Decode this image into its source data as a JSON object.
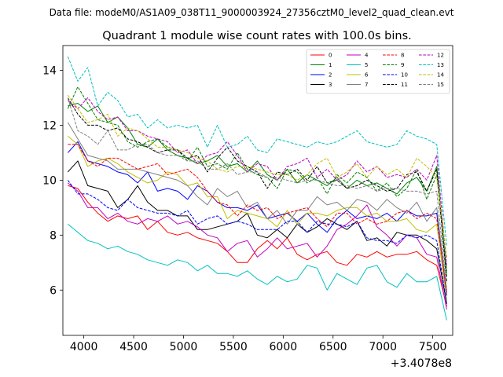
{
  "suptitle": "Data file: modeM0/AS1A09_038T11_9000003924_27356cztM0_level2_quad_clean.evt",
  "chart_data": {
    "type": "line",
    "title": "Quadrant 1 module wise count rates with 100.0s bins.",
    "xlabel": "",
    "ylabel": "",
    "x_offset_label": "+3.4078e8",
    "xlim": [
      3790,
      7700
    ],
    "ylim": [
      4.35,
      14.9
    ],
    "x_ticks": [
      4000,
      4500,
      5000,
      5500,
      6000,
      6500,
      7000,
      7500
    ],
    "x_tick_labels": [
      "4000",
      "4500",
      "5000",
      "5500",
      "6000",
      "6500",
      "7000",
      "7500"
    ],
    "y_ticks": [
      6,
      8,
      10,
      12,
      14
    ],
    "y_tick_labels": [
      "6",
      "8",
      "10",
      "12",
      "14"
    ],
    "legend_position": "top-right",
    "legend_columns": 4,
    "x": [
      3840,
      3940,
      4040,
      4140,
      4240,
      4340,
      4440,
      4540,
      4640,
      4740,
      4840,
      4940,
      5040,
      5140,
      5240,
      5340,
      5440,
      5540,
      5640,
      5740,
      5840,
      5940,
      6040,
      6140,
      6240,
      6340,
      6440,
      6540,
      6640,
      6740,
      6840,
      6940,
      7040,
      7140,
      7240,
      7340,
      7440,
      7540,
      7640
    ],
    "series": [
      {
        "name": "0",
        "color": "#ff0000",
        "dash": "solid",
        "values": [
          9.8,
          9.7,
          9.2,
          8.8,
          8.5,
          8.7,
          8.6,
          8.7,
          8.2,
          8.5,
          8.1,
          8.0,
          8.1,
          7.9,
          7.8,
          7.7,
          7.4,
          7.0,
          7.0,
          7.5,
          7.8,
          7.5,
          7.9,
          7.3,
          7.1,
          7.3,
          7.4,
          7.0,
          6.9,
          7.3,
          7.2,
          7.4,
          7.2,
          7.3,
          7.3,
          7.4,
          7.1,
          6.9,
          5.4
        ]
      },
      {
        "name": "1",
        "color": "#008000",
        "dash": "solid",
        "values": [
          12.7,
          12.8,
          12.5,
          12.7,
          12.1,
          12.3,
          11.9,
          11.3,
          11.2,
          11.5,
          11.1,
          10.9,
          10.8,
          10.6,
          10.7,
          10.9,
          10.5,
          10.6,
          10.3,
          10.7,
          10.2,
          10.0,
          10.4,
          9.9,
          10.2,
          10.0,
          9.8,
          10.1,
          9.7,
          10.0,
          9.8,
          9.9,
          9.7,
          9.5,
          9.9,
          10.1,
          9.6,
          10.5,
          6.5
        ]
      },
      {
        "name": "2",
        "color": "#0000ff",
        "dash": "solid",
        "values": [
          11.0,
          11.4,
          10.7,
          10.6,
          10.5,
          10.3,
          10.2,
          9.9,
          10.3,
          9.6,
          9.7,
          9.6,
          9.3,
          9.8,
          9.6,
          9.2,
          9.0,
          9.0,
          8.9,
          9.1,
          8.6,
          8.7,
          8.8,
          8.5,
          8.8,
          8.4,
          8.1,
          8.6,
          8.9,
          8.6,
          8.7,
          8.6,
          8.8,
          8.5,
          8.9,
          8.7,
          8.7,
          8.8,
          5.8
        ]
      },
      {
        "name": "3",
        "color": "#000000",
        "dash": "solid",
        "values": [
          10.3,
          10.7,
          9.8,
          9.7,
          9.6,
          9.0,
          9.3,
          9.8,
          9.2,
          8.9,
          8.9,
          8.7,
          8.7,
          8.2,
          8.2,
          8.3,
          8.4,
          8.5,
          8.8,
          8.0,
          7.9,
          8.2,
          7.9,
          8.4,
          8.1,
          8.3,
          8.6,
          8.4,
          8.2,
          8.5,
          7.8,
          7.9,
          7.6,
          8.1,
          8.0,
          8.0,
          7.8,
          7.5,
          5.5
        ]
      },
      {
        "name": "4",
        "color": "#bf00bf",
        "dash": "solid",
        "values": [
          9.9,
          9.6,
          9.0,
          9.0,
          8.6,
          8.8,
          8.5,
          8.4,
          8.6,
          8.5,
          8.7,
          8.4,
          8.5,
          8.3,
          8.0,
          7.9,
          7.4,
          7.7,
          7.8,
          7.2,
          7.5,
          7.9,
          7.5,
          7.6,
          7.7,
          7.2,
          7.6,
          8.2,
          8.4,
          8.7,
          9.1,
          8.3,
          8.0,
          7.6,
          8.0,
          7.9,
          7.3,
          7.2,
          5.3
        ]
      },
      {
        "name": "5",
        "color": "#00bfbf",
        "dash": "solid",
        "values": [
          8.4,
          8.1,
          7.8,
          7.7,
          7.5,
          7.6,
          7.4,
          7.3,
          7.1,
          7.0,
          6.9,
          7.1,
          7.0,
          6.7,
          6.9,
          6.6,
          6.6,
          6.5,
          6.7,
          6.4,
          6.2,
          6.5,
          6.3,
          6.4,
          6.9,
          6.8,
          6.0,
          6.6,
          6.4,
          6.2,
          6.8,
          6.9,
          6.3,
          6.1,
          6.6,
          6.3,
          6.3,
          6.5,
          4.9
        ]
      },
      {
        "name": "6",
        "color": "#bfbf00",
        "dash": "solid",
        "values": [
          11.6,
          11.3,
          10.5,
          10.7,
          10.8,
          10.6,
          10.3,
          10.1,
          9.9,
          10.0,
          10.3,
          10.2,
          9.8,
          9.9,
          9.4,
          9.4,
          8.6,
          8.9,
          8.8,
          8.7,
          8.6,
          8.3,
          8.9,
          8.4,
          8.8,
          8.8,
          8.7,
          8.9,
          9.0,
          9.0,
          8.7,
          8.8,
          8.5,
          8.5,
          8.6,
          8.2,
          8.1,
          8.4,
          5.6
        ]
      },
      {
        "name": "7",
        "color": "#808080",
        "dash": "solid",
        "values": [
          12.1,
          11.5,
          10.9,
          10.8,
          10.7,
          10.4,
          10.4,
          10.4,
          10.3,
          10.2,
          10.1,
          10.0,
          9.8,
          9.4,
          9.1,
          9.7,
          9.4,
          9.6,
          9.0,
          9.2,
          8.6,
          8.9,
          8.4,
          8.9,
          8.9,
          9.4,
          9.1,
          9.2,
          8.9,
          9.3,
          9.2,
          8.9,
          9.3,
          9.0,
          8.8,
          9.2,
          8.5,
          9.0,
          5.9
        ]
      },
      {
        "name": "8",
        "color": "#ff0000",
        "dash": "dashed",
        "values": [
          11.3,
          11.3,
          10.7,
          10.5,
          10.8,
          10.8,
          10.6,
          10.4,
          10.5,
          10.6,
          10.2,
          10.3,
          10.4,
          10.1,
          9.6,
          9.2,
          9.1,
          8.7,
          9.1,
          8.9,
          9.0,
          8.6,
          8.8,
          8.9,
          9.0,
          8.6,
          8.3,
          8.8,
          8.8,
          8.4,
          8.6,
          8.4,
          8.5,
          8.8,
          8.9,
          8.6,
          8.8,
          8.6,
          5.9
        ]
      },
      {
        "name": "9",
        "color": "#008000",
        "dash": "dashed",
        "values": [
          12.6,
          13.4,
          12.8,
          12.2,
          12.1,
          12.0,
          11.4,
          11.2,
          11.4,
          11.5,
          11.2,
          11.1,
          10.7,
          11.2,
          10.5,
          10.6,
          10.4,
          11.0,
          10.4,
          10.2,
          10.1,
          9.7,
          10.4,
          10.3,
          9.9,
          10.1,
          9.5,
          10.2,
          9.9,
          10.3,
          10.1,
          9.6,
          9.9,
          9.4,
          9.7,
          10.4,
          9.3,
          10.2,
          6.7
        ]
      },
      {
        "name": "10",
        "color": "#0000ff",
        "dash": "dashed",
        "values": [
          10.0,
          9.5,
          9.5,
          9.3,
          9.0,
          8.9,
          9.3,
          9.0,
          8.9,
          8.8,
          8.8,
          8.7,
          8.9,
          8.4,
          8.6,
          8.7,
          8.4,
          8.5,
          8.4,
          8.2,
          8.2,
          8.2,
          8.5,
          8.5,
          8.1,
          8.5,
          8.4,
          8.4,
          8.3,
          8.5,
          7.9,
          7.8,
          7.8,
          7.7,
          8.0,
          7.9,
          8.0,
          7.8,
          5.5
        ]
      },
      {
        "name": "11",
        "color": "#000000",
        "dash": "dashed",
        "values": [
          13.0,
          12.4,
          12.0,
          12.0,
          11.8,
          11.9,
          11.5,
          11.4,
          11.2,
          11.0,
          11.1,
          11.1,
          10.8,
          10.9,
          10.3,
          10.8,
          11.2,
          10.7,
          10.5,
          10.3,
          9.7,
          10.3,
          10.2,
          10.4,
          10.0,
          10.5,
          9.9,
          10.0,
          9.7,
          9.8,
          10.0,
          9.8,
          9.6,
          9.7,
          10.2,
          10.3,
          9.6,
          10.4,
          6.3
        ]
      },
      {
        "name": "12",
        "color": "#bf00bf",
        "dash": "dashed",
        "values": [
          12.9,
          12.6,
          13.0,
          12.5,
          12.2,
          12.3,
          11.8,
          11.8,
          11.6,
          11.5,
          11.4,
          11.0,
          11.1,
          10.6,
          10.9,
          11.0,
          11.4,
          10.9,
          10.3,
          10.6,
          10.5,
          10.0,
          10.5,
          10.6,
          10.8,
          10.1,
          10.4,
          10.0,
          10.2,
          10.7,
          10.3,
          10.5,
          10.1,
          10.2,
          10.1,
          10.4,
          10.0,
          10.9,
          6.9
        ]
      },
      {
        "name": "13",
        "color": "#00bfbf",
        "dash": "dashed",
        "values": [
          14.5,
          13.6,
          14.1,
          12.7,
          13.2,
          12.9,
          12.3,
          12.4,
          11.9,
          12.2,
          11.9,
          12.0,
          11.9,
          12.0,
          11.2,
          12.0,
          11.2,
          11.3,
          11.6,
          11.1,
          11.0,
          11.5,
          11.4,
          11.3,
          11.2,
          11.4,
          11.3,
          11.4,
          11.6,
          11.8,
          11.4,
          11.3,
          11.2,
          11.3,
          11.8,
          11.6,
          11.5,
          11.3,
          7.6
        ]
      },
      {
        "name": "14",
        "color": "#bfbf00",
        "dash": "dashed",
        "values": [
          13.1,
          12.6,
          12.1,
          12.2,
          12.4,
          11.6,
          11.9,
          11.8,
          11.5,
          11.2,
          11.2,
          11.1,
          11.0,
          10.8,
          10.7,
          10.4,
          10.3,
          10.5,
          10.5,
          10.4,
          10.3,
          10.2,
          10.2,
          10.0,
          10.2,
          10.6,
          10.8,
          10.1,
          10.3,
          10.6,
          10.1,
          10.5,
          10.2,
          10.4,
          10.1,
          10.8,
          10.5,
          10.1,
          7.2
        ]
      },
      {
        "name": "15",
        "color": "#808080",
        "dash": "dashed",
        "values": [
          13.0,
          11.8,
          11.6,
          11.3,
          11.8,
          11.1,
          11.1,
          11.3,
          11.3,
          11.0,
          10.9,
          10.9,
          10.7,
          10.7,
          10.4,
          10.4,
          10.6,
          10.2,
          10.3,
          10.3,
          10.1,
          10.1,
          10.0,
          9.9,
          10.0,
          10.0,
          9.9,
          9.8,
          9.8,
          9.7,
          9.8,
          9.6,
          9.7,
          9.7,
          9.6,
          9.6,
          9.5,
          9.6,
          6.0
        ]
      }
    ]
  }
}
